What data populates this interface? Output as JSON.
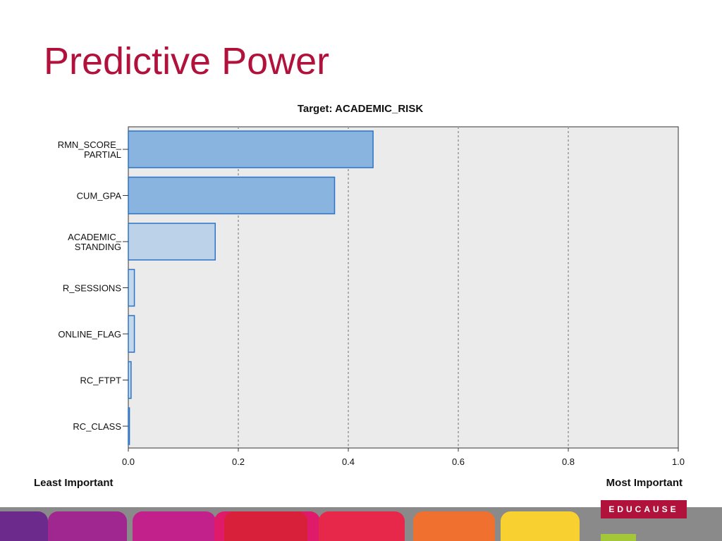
{
  "slide": {
    "title": "Predictive Power"
  },
  "brand": {
    "logo_text": "EDUCAUSE",
    "title_color": "#b0123b"
  },
  "chart_data": {
    "type": "bar",
    "orientation": "horizontal",
    "title": "Target: ACADEMIC_RISK",
    "categories": [
      [
        "RMN_SCORE_",
        "PARTIAL"
      ],
      [
        "CUM_GPA"
      ],
      [
        "ACADEMIC_",
        "STANDING"
      ],
      [
        "R_SESSIONS"
      ],
      [
        "ONLINE_FLAG"
      ],
      [
        "RC_FTPT"
      ],
      [
        "RC_CLASS"
      ]
    ],
    "values": [
      0.445,
      0.375,
      0.158,
      0.011,
      0.011,
      0.005,
      0.002
    ],
    "bar_colors": [
      "#8ab4e0",
      "#8ab4e0",
      "#bcd2e8",
      "#c4d8ec",
      "#c4d8ec",
      "#c4d8ec",
      "#c4d8ec"
    ],
    "xlim": [
      0.0,
      1.0
    ],
    "xticks": [
      "0.0",
      "0.2",
      "0.4",
      "0.6",
      "0.8",
      "1.0"
    ],
    "x_axis_left_label": "Least Important",
    "x_axis_right_label": "Most Important",
    "grid": "vertical dotted",
    "plot_background": "#ebebeb"
  }
}
